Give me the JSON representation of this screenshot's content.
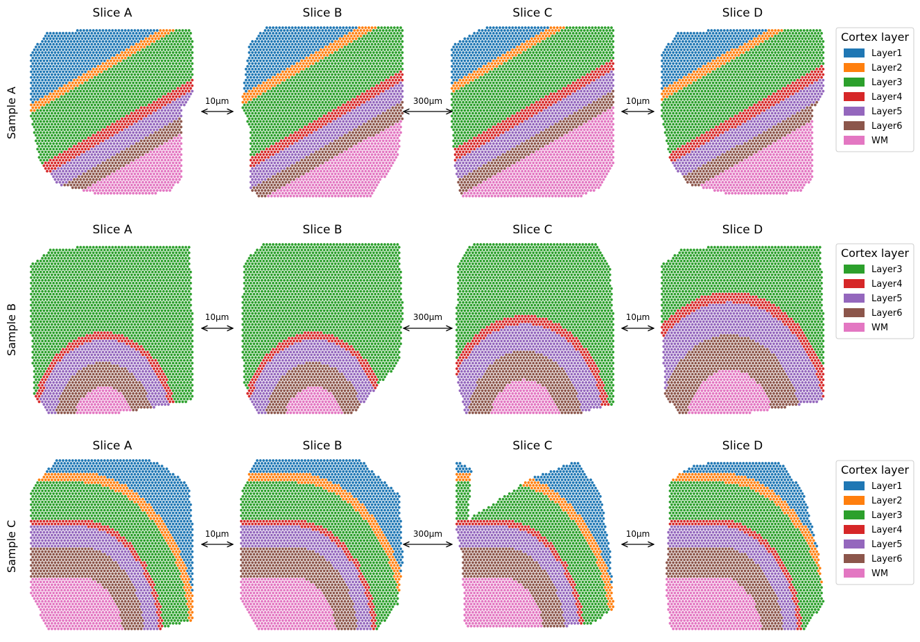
{
  "chart_data": {
    "type": "scatter",
    "description_free": true,
    "colors": {
      "Layer1": "#1f77b4",
      "Layer2": "#ff7f0e",
      "Layer3": "#2ca02c",
      "Layer4": "#d62728",
      "Layer5": "#9467bd",
      "Layer6": "#8c564b",
      "WM": "#e377c2"
    },
    "slice_titles": [
      "Slice A",
      "Slice B",
      "Slice C",
      "Slice D"
    ],
    "gap_labels": [
      "10μm",
      "300μm",
      "10μm"
    ],
    "rows": [
      {
        "label": "Sample A",
        "legend": {
          "title": "Cortex layer",
          "entries": [
            "Layer1",
            "Layer2",
            "Layer3",
            "Layer4",
            "Layer5",
            "Layer6",
            "WM"
          ]
        }
      },
      {
        "label": "Sample B",
        "legend": {
          "title": "Cortex layer",
          "entries": [
            "Layer3",
            "Layer4",
            "Layer5",
            "Layer6",
            "WM"
          ]
        }
      },
      {
        "label": "Sample C",
        "legend": {
          "title": "Cortex layer",
          "entries": [
            "Layer1",
            "Layer2",
            "Layer3",
            "Layer4",
            "Layer5",
            "Layer6",
            "WM"
          ]
        }
      }
    ]
  }
}
